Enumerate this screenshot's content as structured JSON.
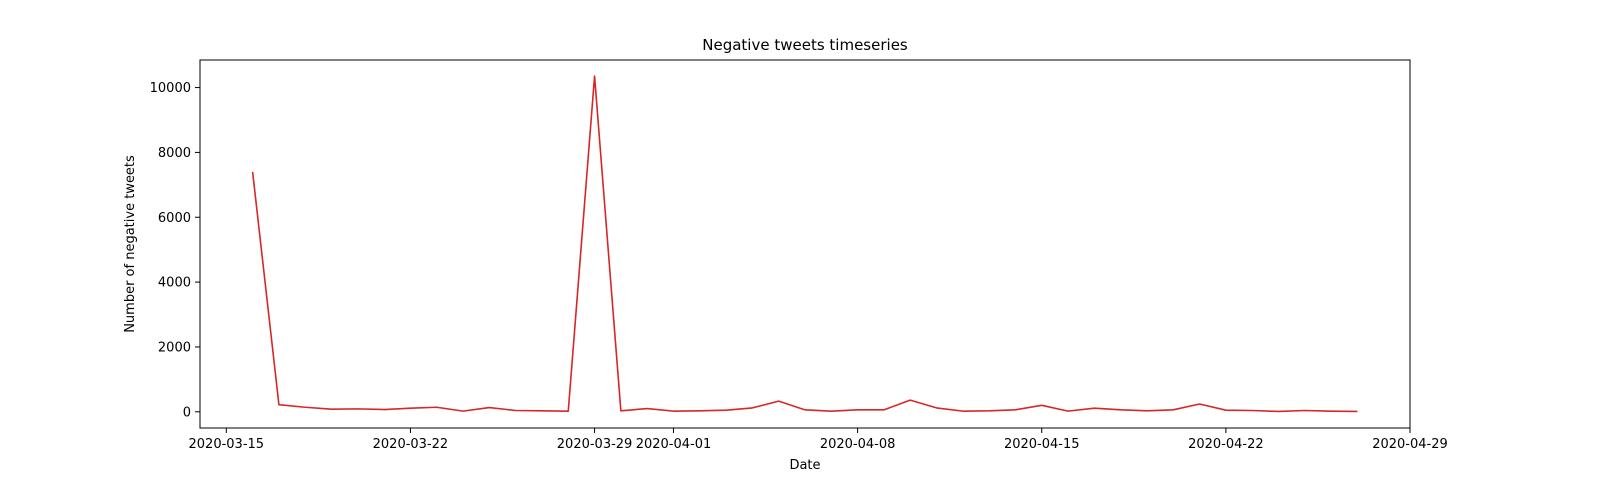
{
  "colors": {
    "line": "#d62728",
    "axes": "#000000",
    "background": "#ffffff"
  },
  "chart_data": {
    "type": "line",
    "title": "Negative tweets timeseries",
    "xlabel": "Date",
    "ylabel": "Number of negative tweets",
    "x_axis_type": "date",
    "xlim": [
      "2020-03-14",
      "2020-04-29"
    ],
    "ylim": [
      -500,
      10850
    ],
    "xticks": [
      "2020-03-15",
      "2020-03-22",
      "2020-03-29",
      "2020-04-01",
      "2020-04-08",
      "2020-04-15",
      "2020-04-22",
      "2020-04-29"
    ],
    "yticks": [
      0,
      2000,
      4000,
      6000,
      8000,
      10000
    ],
    "grid": false,
    "legend": "none",
    "series": [
      {
        "color": "#d62728",
        "x": [
          "2020-03-16",
          "2020-03-17",
          "2020-03-18",
          "2020-03-19",
          "2020-03-20",
          "2020-03-21",
          "2020-03-22",
          "2020-03-23",
          "2020-03-24",
          "2020-03-25",
          "2020-03-26",
          "2020-03-27",
          "2020-03-28",
          "2020-03-29",
          "2020-03-30",
          "2020-03-31",
          "2020-04-01",
          "2020-04-02",
          "2020-04-03",
          "2020-04-04",
          "2020-04-05",
          "2020-04-06",
          "2020-04-07",
          "2020-04-08",
          "2020-04-09",
          "2020-04-10",
          "2020-04-11",
          "2020-04-12",
          "2020-04-13",
          "2020-04-14",
          "2020-04-15",
          "2020-04-16",
          "2020-04-17",
          "2020-04-18",
          "2020-04-19",
          "2020-04-20",
          "2020-04-21",
          "2020-04-22",
          "2020-04-23",
          "2020-04-24",
          "2020-04-25",
          "2020-04-26",
          "2020-04-27"
        ],
        "values": [
          7400,
          220,
          140,
          80,
          90,
          70,
          110,
          140,
          20,
          130,
          40,
          30,
          20,
          10350,
          30,
          100,
          20,
          30,
          50,
          120,
          330,
          60,
          20,
          60,
          60,
          360,
          120,
          20,
          30,
          60,
          200,
          20,
          110,
          60,
          30,
          60,
          240,
          50,
          40,
          10,
          40,
          20,
          10
        ]
      }
    ]
  }
}
